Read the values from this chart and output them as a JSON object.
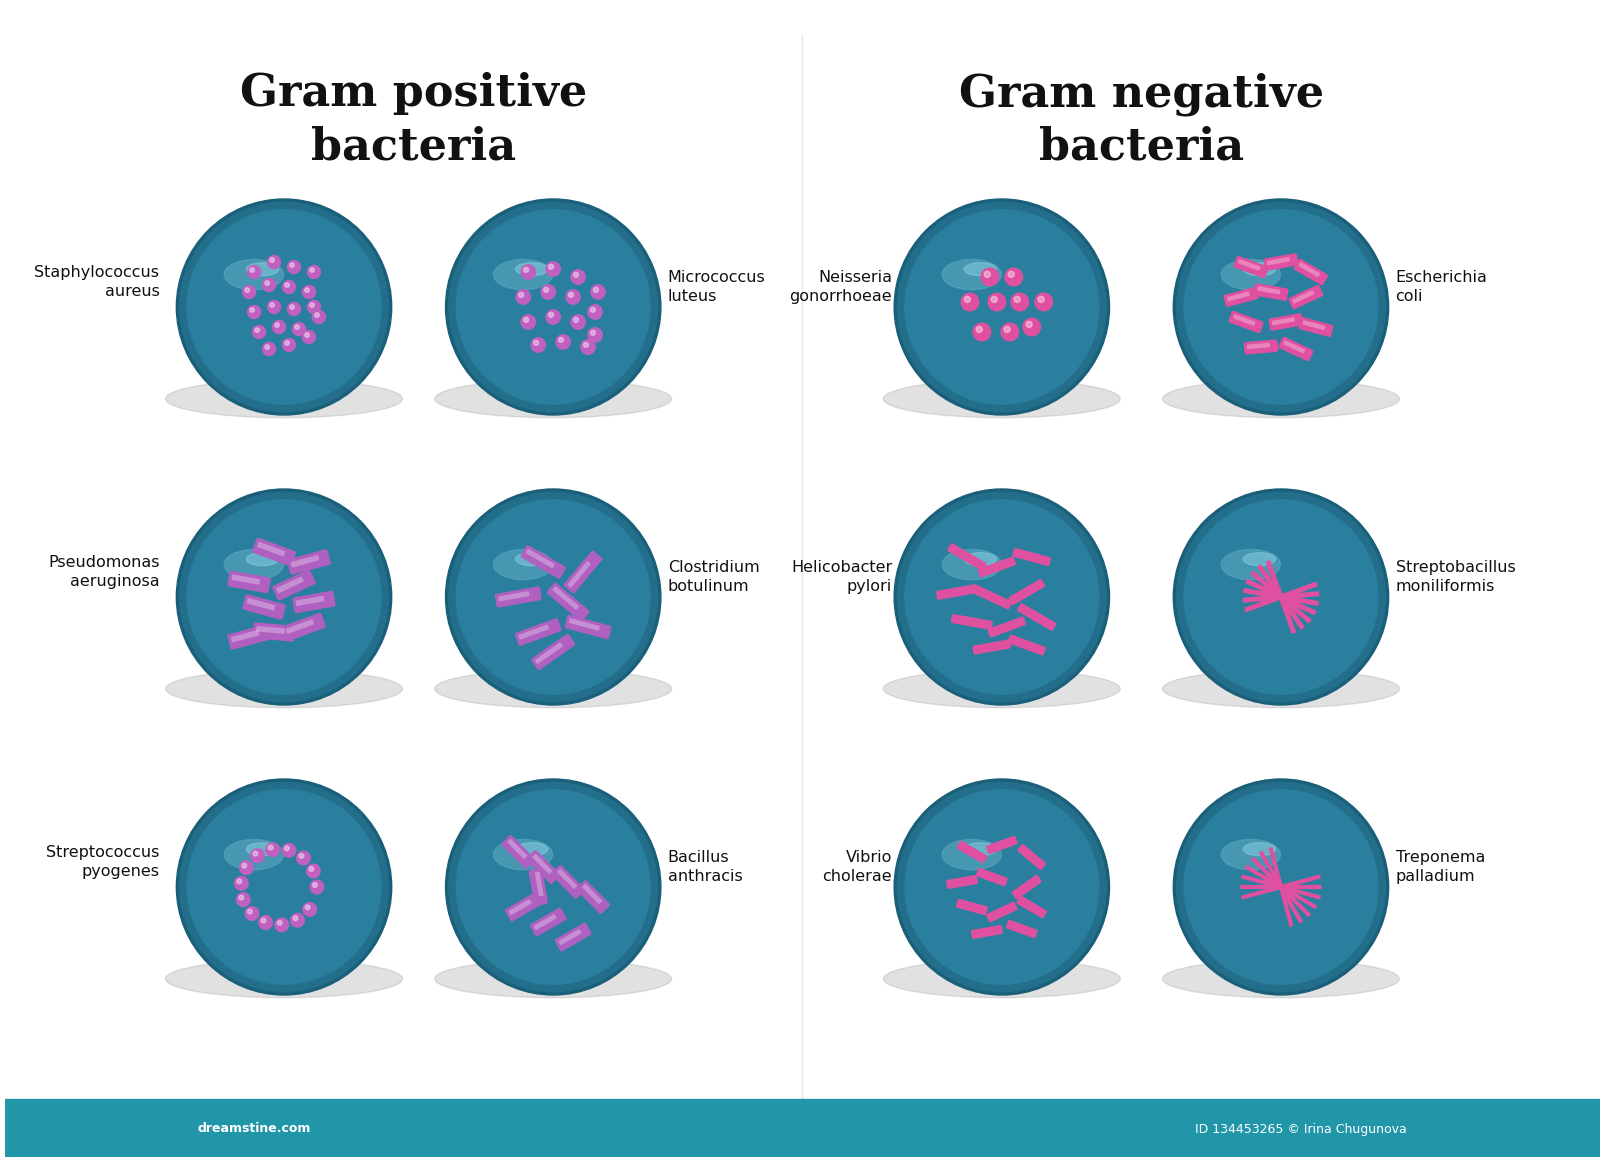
{
  "title_left": "Gram positive\nbacteria",
  "title_right": "Gram negative\nbacteria",
  "bg_color": "#ffffff",
  "circle_color_outer": "#1a6080",
  "circle_color_inner": "#2a7090",
  "circle_highlight": "#4a9ab0",
  "gram_pos_cocci_color": "#c060c0",
  "gram_pos_rod_color": "#b060c0",
  "gram_neg_cocci_color": "#e050a0",
  "gram_neg_rod_color": "#e050a0",
  "bottom_bar_color": "#2196a8",
  "labels": {
    "staph": "Staphylococcus\naureus",
    "micro": "Micrococcus\nluteus",
    "pseudo": "Pseudomonas\naeruginosa",
    "clost": "Clostridium\nbotulinum",
    "strep": "Streptococcus\npyogenes",
    "bacillus": "Bacillus\nanthracis",
    "neisseria": "Neisseria\ngonorrhoeae",
    "esch": "Escherichia\ncoli",
    "helico": "Helicobacter\npylori",
    "strepto_b": "Streptobacillus\nmoniliformis",
    "vibrio": "Vibrio\ncholerae",
    "trepo": "Treponema\npalladium"
  },
  "footer_text": "dreamstine.com",
  "footer_id": "ID 134453265 © Irina Chugunova"
}
